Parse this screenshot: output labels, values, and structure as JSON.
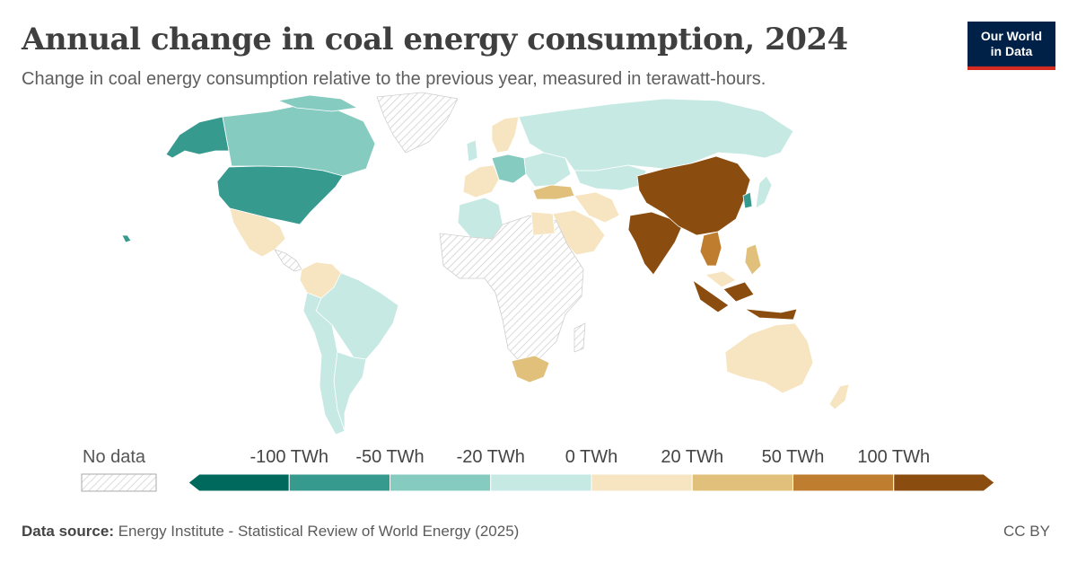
{
  "header": {
    "title": "Annual change in coal energy consumption, 2024",
    "subtitle": "Change in coal energy consumption relative to the previous year, measured in terawatt-hours."
  },
  "logo": {
    "line1": "Our World",
    "line2": "in Data"
  },
  "legend": {
    "no_data_label": "No data",
    "bins": [
      {
        "color": "#00695e"
      },
      {
        "color": "#379a8f"
      },
      {
        "color": "#85cbc0"
      },
      {
        "color": "#c6e9e3"
      },
      {
        "color": "#f6e5c0"
      },
      {
        "color": "#e0c07a"
      },
      {
        "color": "#bf7d2f"
      },
      {
        "color": "#8b4d0f"
      }
    ],
    "tick_labels": [
      "-100 TWh",
      "-50 TWh",
      "-20 TWh",
      "0 TWh",
      "20 TWh",
      "50 TWh",
      "100 TWh"
    ]
  },
  "footer": {
    "source_label": "Data source:",
    "source_text": "Energy Institute - Statistical Review of World Energy (2025)",
    "license": "CC BY"
  },
  "map_regions": [
    {
      "name": "China",
      "category": "above 100 TWh",
      "color": "#8b4d0f"
    },
    {
      "name": "India",
      "category": "above 100 TWh",
      "color": "#8b4d0f"
    },
    {
      "name": "Indonesia",
      "category": "above 100 TWh",
      "color": "#8b4d0f"
    },
    {
      "name": "Vietnam",
      "category": "50 to 100 TWh",
      "color": "#bf7d2f"
    },
    {
      "name": "Philippines",
      "category": "20 to 50 TWh",
      "color": "#e0c07a"
    },
    {
      "name": "South Africa",
      "category": "20 to 50 TWh",
      "color": "#e0c07a"
    },
    {
      "name": "Turkey",
      "category": "20 to 50 TWh",
      "color": "#e0c07a"
    },
    {
      "name": "United States",
      "category": "-100 to -50 TWh",
      "color": "#379a8f"
    },
    {
      "name": "Alaska",
      "category": "-100 to -50 TWh",
      "color": "#379a8f"
    },
    {
      "name": "South Korea",
      "category": "-100 to -50 TWh",
      "color": "#379a8f"
    },
    {
      "name": "Canada",
      "category": "-50 to -20 TWh",
      "color": "#85cbc0"
    },
    {
      "name": "Germany",
      "category": "-50 to -20 TWh",
      "color": "#85cbc0"
    },
    {
      "name": "Russia",
      "category": "-20 to 0 TWh",
      "color": "#c6e9e3"
    },
    {
      "name": "Brazil",
      "category": "-20 to 0 TWh",
      "color": "#c6e9e3"
    },
    {
      "name": "Australia",
      "category": "0 to 20 TWh",
      "color": "#f6e5c0"
    },
    {
      "name": "Mexico",
      "category": "0 to 20 TWh",
      "color": "#f6e5c0"
    },
    {
      "name": "Saudi Arabia",
      "category": "0 to 20 TWh",
      "color": "#f6e5c0"
    },
    {
      "name": "Colombia",
      "category": "0 to 20 TWh",
      "color": "#f6e5c0"
    }
  ]
}
